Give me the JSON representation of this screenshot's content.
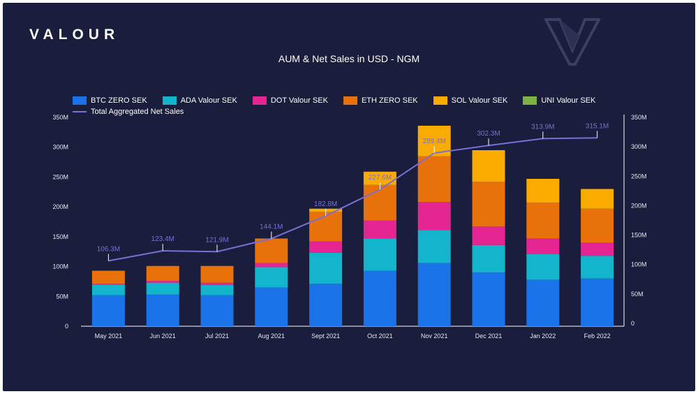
{
  "brand": "VALOUR",
  "chart_data": {
    "type": "bar",
    "stacked": true,
    "title": "AUM & Net Sales in USD - NGM",
    "categories": [
      "May 2021",
      "Jun 2021",
      "Jul 2021",
      "Aug 2021",
      "Sept 2021",
      "Oct 2021",
      "Nov 2021",
      "Dec 2021",
      "Jan 2022",
      "Feb 2022"
    ],
    "series": [
      {
        "name": "BTC ZERO SEK",
        "color": "#1a73e8",
        "values": [
          52,
          53,
          52,
          65,
          71,
          93,
          106,
          90,
          78,
          80
        ]
      },
      {
        "name": "ADA Valour SEK",
        "color": "#12b5cb",
        "values": [
          18,
          20,
          17,
          34,
          52,
          54,
          55,
          46,
          43,
          38
        ]
      },
      {
        "name": "DOT Valour SEK",
        "color": "#e52592",
        "values": [
          1,
          3,
          4,
          7,
          19,
          30,
          47,
          31,
          26,
          22
        ]
      },
      {
        "name": "ETH ZERO SEK",
        "color": "#e8710a",
        "values": [
          22,
          25,
          28,
          41,
          50,
          60,
          77,
          75,
          60,
          57
        ]
      },
      {
        "name": "SOL Valour SEK",
        "color": "#f9ab00",
        "values": [
          0,
          0,
          0,
          0,
          5,
          22,
          51,
          53,
          40,
          33
        ]
      },
      {
        "name": "UNI Valour SEK",
        "color": "#7cb342",
        "values": [
          0,
          0,
          0,
          0,
          0,
          0,
          0,
          0,
          0,
          0
        ]
      }
    ],
    "line_series": {
      "name": "Total Aggregated Net Sales",
      "color": "#7b6fd6",
      "values": [
        106.3,
        123.4,
        121.9,
        144.1,
        182.8,
        227.6,
        289.4,
        302.3,
        313.9,
        315.1
      ],
      "labels": [
        "106.3M",
        "123.4M",
        "121.9M",
        "144.1M",
        "182.8M",
        "227.6M",
        "289.4M",
        "302.3M",
        "313.9M",
        "315.1M"
      ]
    },
    "y_left": {
      "ticks": [
        "0",
        "50M",
        "100M",
        "150M",
        "200M",
        "250M",
        "300M",
        "350M"
      ],
      "ylim": [
        0,
        350
      ]
    },
    "y_right": {
      "ticks": [
        "0",
        "50M",
        "100M",
        "150M",
        "200M",
        "250M",
        "300M",
        "350M"
      ],
      "ylim": [
        0,
        350
      ]
    },
    "legend_position": "top"
  }
}
